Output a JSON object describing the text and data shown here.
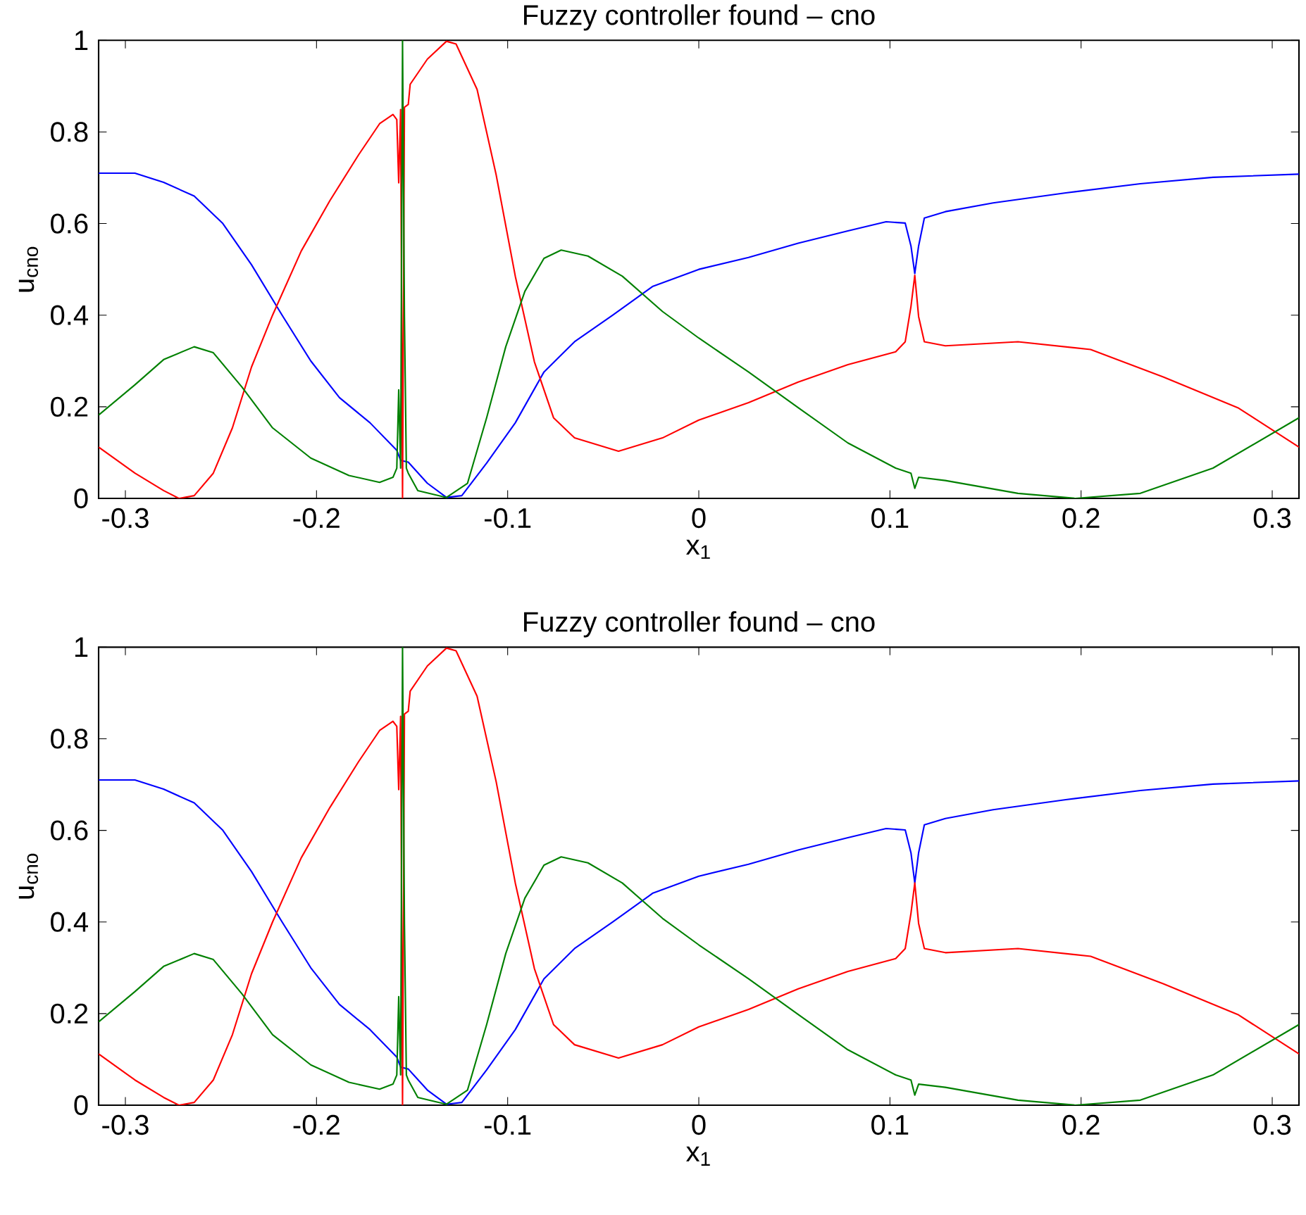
{
  "chart_data": [
    {
      "type": "line",
      "title": "Fuzzy controller found – cno",
      "xlabel": "x$_{1}$",
      "ylabel": "u$_{cno}$",
      "xlim": [
        -0.314,
        0.314
      ],
      "ylim": [
        0,
        1
      ],
      "xticks": [
        -0.3,
        -0.2,
        -0.1,
        0,
        0.1,
        0.2,
        0.3
      ],
      "yticks": [
        0,
        0.2,
        0.4,
        0.6,
        0.8,
        1
      ],
      "series": [
        {
          "color": "#0000ff",
          "x": [
            -0.314,
            -0.295,
            -0.28,
            -0.264,
            -0.249,
            -0.234,
            -0.218,
            -0.203,
            -0.188,
            -0.172,
            -0.158,
            -0.156,
            -0.152,
            -0.142,
            -0.132,
            -0.124,
            -0.111,
            -0.096,
            -0.081,
            -0.065,
            -0.045,
            -0.024,
            0,
            0.026,
            0.052,
            0.078,
            0.098,
            0.108,
            0.111,
            0.113,
            0.115,
            0.118,
            0.129,
            0.154,
            0.192,
            0.231,
            0.269,
            0.314
          ],
          "values": [
            0.71,
            0.71,
            0.69,
            0.66,
            0.6,
            0.51,
            0.4,
            0.3,
            0.22,
            0.165,
            0.105,
            0.083,
            0.079,
            0.033,
            0.002,
            0.006,
            0.077,
            0.165,
            0.276,
            0.342,
            0.4,
            0.463,
            0.5,
            0.526,
            0.557,
            0.584,
            0.604,
            0.601,
            0.551,
            0.491,
            0.551,
            0.612,
            0.626,
            0.645,
            0.667,
            0.687,
            0.701,
            0.708
          ]
        },
        {
          "color": "#ff0000",
          "x": [
            -0.314,
            -0.295,
            -0.28,
            -0.272,
            -0.264,
            -0.254,
            -0.244,
            -0.234,
            -0.223,
            -0.208,
            -0.193,
            -0.178,
            -0.167,
            -0.16,
            -0.158,
            -0.157,
            -0.156,
            -0.155,
            -0.154,
            -0.152,
            -0.151,
            -0.142,
            -0.132,
            -0.127,
            -0.116,
            -0.106,
            -0.096,
            -0.086,
            -0.076,
            -0.065,
            -0.042,
            -0.019,
            0,
            0.026,
            0.052,
            0.078,
            0.103,
            0.108,
            0.111,
            0.113,
            0.115,
            0.118,
            0.129,
            0.167,
            0.205,
            0.243,
            0.282,
            0.314
          ],
          "values": [
            0.112,
            0.055,
            0.017,
            0,
            0.006,
            0.055,
            0.154,
            0.287,
            0.4,
            0.54,
            0.65,
            0.75,
            0.818,
            0.838,
            0.827,
            0.689,
            0.849,
            0,
            0.854,
            0.86,
            0.904,
            0.959,
            0.998,
            0.992,
            0.893,
            0.706,
            0.485,
            0.298,
            0.176,
            0.132,
            0.103,
            0.132,
            0.171,
            0.209,
            0.254,
            0.292,
            0.32,
            0.342,
            0.419,
            0.487,
            0.397,
            0.342,
            0.333,
            0.342,
            0.325,
            0.265,
            0.198,
            0.112
          ]
        },
        {
          "color": "#008000",
          "x": [
            -0.314,
            -0.295,
            -0.28,
            -0.264,
            -0.254,
            -0.239,
            -0.223,
            -0.203,
            -0.183,
            -0.167,
            -0.16,
            -0.158,
            -0.157,
            -0.156,
            -0.155,
            -0.154,
            -0.153,
            -0.152,
            -0.147,
            -0.132,
            -0.121,
            -0.111,
            -0.101,
            -0.091,
            -0.081,
            -0.072,
            -0.058,
            -0.04,
            -0.019,
            0,
            0.026,
            0.052,
            0.078,
            0.103,
            0.111,
            0.113,
            0.115,
            0.129,
            0.167,
            0.197,
            0.231,
            0.269,
            0.314
          ],
          "values": [
            0.182,
            0.248,
            0.303,
            0.331,
            0.318,
            0.243,
            0.154,
            0.088,
            0.05,
            0.035,
            0.046,
            0.066,
            0.237,
            0.066,
            1,
            0.397,
            0.066,
            0.055,
            0.017,
            0.002,
            0.033,
            0.176,
            0.331,
            0.452,
            0.524,
            0.542,
            0.529,
            0.485,
            0.408,
            0.35,
            0.276,
            0.198,
            0.121,
            0.066,
            0.055,
            0.022,
            0.046,
            0.039,
            0.011,
            0,
            0.011,
            0.066,
            0.176
          ]
        }
      ]
    },
    {
      "type": "line",
      "title": "Fuzzy controller found – cno",
      "xlabel": "x$_{1}$",
      "ylabel": "u$_{cno}$",
      "xlim": [
        -0.314,
        0.314
      ],
      "ylim": [
        0,
        1
      ],
      "xticks": [
        -0.3,
        -0.2,
        -0.1,
        0,
        0.1,
        0.2,
        0.3
      ],
      "yticks": [
        0,
        0.2,
        0.4,
        0.6,
        0.8,
        1
      ],
      "series": [
        {
          "color": "#0000ff",
          "x": [
            -0.314,
            -0.295,
            -0.28,
            -0.264,
            -0.249,
            -0.234,
            -0.218,
            -0.203,
            -0.188,
            -0.172,
            -0.158,
            -0.156,
            -0.152,
            -0.142,
            -0.132,
            -0.124,
            -0.111,
            -0.096,
            -0.081,
            -0.065,
            -0.045,
            -0.024,
            0,
            0.026,
            0.052,
            0.078,
            0.098,
            0.108,
            0.111,
            0.113,
            0.115,
            0.118,
            0.129,
            0.154,
            0.192,
            0.231,
            0.269,
            0.314
          ],
          "values": [
            0.71,
            0.71,
            0.69,
            0.66,
            0.6,
            0.51,
            0.4,
            0.3,
            0.22,
            0.165,
            0.105,
            0.083,
            0.079,
            0.033,
            0.002,
            0.006,
            0.077,
            0.165,
            0.276,
            0.342,
            0.4,
            0.463,
            0.5,
            0.526,
            0.557,
            0.584,
            0.604,
            0.601,
            0.551,
            0.485,
            0.551,
            0.612,
            0.626,
            0.645,
            0.667,
            0.687,
            0.701,
            0.708
          ]
        },
        {
          "color": "#ff0000",
          "x": [
            -0.314,
            -0.295,
            -0.28,
            -0.272,
            -0.264,
            -0.254,
            -0.244,
            -0.234,
            -0.223,
            -0.208,
            -0.193,
            -0.178,
            -0.167,
            -0.16,
            -0.158,
            -0.157,
            -0.156,
            -0.155,
            -0.154,
            -0.152,
            -0.151,
            -0.142,
            -0.132,
            -0.127,
            -0.116,
            -0.106,
            -0.096,
            -0.086,
            -0.076,
            -0.065,
            -0.042,
            -0.019,
            0,
            0.026,
            0.052,
            0.078,
            0.103,
            0.108,
            0.111,
            0.113,
            0.115,
            0.118,
            0.129,
            0.167,
            0.205,
            0.243,
            0.282,
            0.314
          ],
          "values": [
            0.112,
            0.055,
            0.017,
            0,
            0.006,
            0.055,
            0.154,
            0.287,
            0.4,
            0.54,
            0.65,
            0.75,
            0.818,
            0.838,
            0.827,
            0.689,
            0.849,
            0,
            0.854,
            0.86,
            0.904,
            0.959,
            0.998,
            0.992,
            0.893,
            0.706,
            0.485,
            0.298,
            0.176,
            0.132,
            0.103,
            0.132,
            0.171,
            0.209,
            0.254,
            0.292,
            0.32,
            0.342,
            0.419,
            0.485,
            0.397,
            0.342,
            0.333,
            0.342,
            0.325,
            0.265,
            0.198,
            0.112
          ]
        },
        {
          "color": "#008000",
          "x": [
            -0.314,
            -0.295,
            -0.28,
            -0.264,
            -0.254,
            -0.239,
            -0.223,
            -0.203,
            -0.183,
            -0.167,
            -0.16,
            -0.158,
            -0.157,
            -0.156,
            -0.155,
            -0.154,
            -0.153,
            -0.152,
            -0.147,
            -0.132,
            -0.121,
            -0.111,
            -0.101,
            -0.091,
            -0.081,
            -0.072,
            -0.058,
            -0.04,
            -0.019,
            0,
            0.026,
            0.052,
            0.078,
            0.103,
            0.111,
            0.113,
            0.115,
            0.129,
            0.167,
            0.197,
            0.231,
            0.269,
            0.314
          ],
          "values": [
            0.182,
            0.248,
            0.303,
            0.331,
            0.318,
            0.243,
            0.154,
            0.088,
            0.05,
            0.035,
            0.046,
            0.066,
            0.237,
            0.066,
            1,
            0.397,
            0.066,
            0.055,
            0.017,
            0.002,
            0.033,
            0.176,
            0.331,
            0.452,
            0.524,
            0.542,
            0.529,
            0.485,
            0.408,
            0.35,
            0.276,
            0.198,
            0.121,
            0.066,
            0.055,
            0.022,
            0.046,
            0.039,
            0.011,
            0,
            0.011,
            0.066,
            0.176
          ]
        }
      ]
    }
  ]
}
